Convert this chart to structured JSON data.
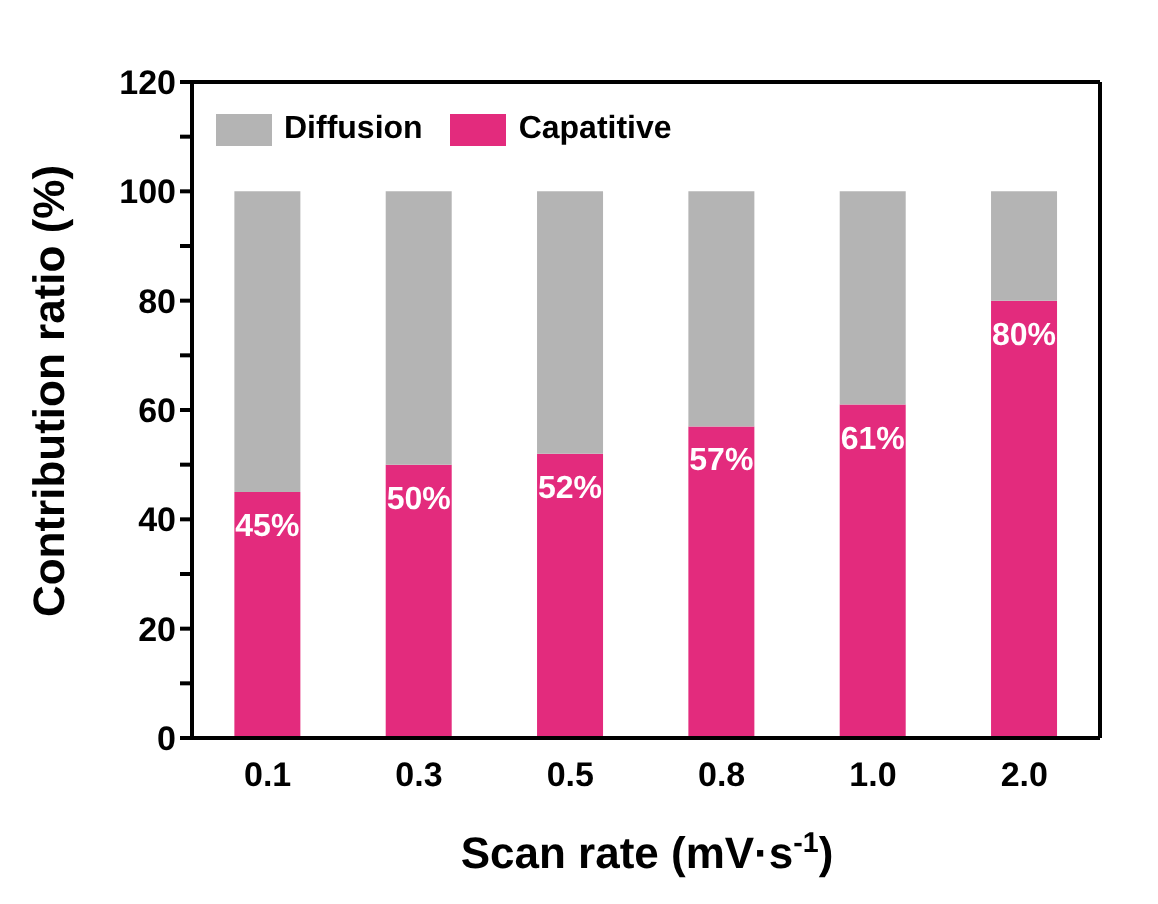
{
  "chart_data": {
    "type": "bar",
    "stacked": true,
    "xlabel": "Scan rate (mV·s$^{-1}$)",
    "ylabel": "Contribution ratio (%)",
    "categories": [
      "0.1",
      "0.3",
      "0.5",
      "0.8",
      "1.0",
      "2.0"
    ],
    "series": [
      {
        "name": "Capatitive",
        "color": "#e32b7d",
        "values": [
          45,
          50,
          52,
          57,
          61,
          80
        ],
        "value_labels": [
          "45%",
          "50%",
          "52%",
          "57%",
          "61%",
          "80%"
        ]
      },
      {
        "name": "Diffusion",
        "color": "#b4b4b4",
        "values": [
          55,
          50,
          48,
          43,
          39,
          20
        ]
      }
    ],
    "ylim": [
      0,
      120
    ],
    "yticks": [
      0,
      {
        "value": 10,
        "label": null
      },
      20,
      {
        "value": 30,
        "label": null
      },
      40,
      {
        "value": 50,
        "label": null
      },
      60,
      {
        "value": 70,
        "label": null
      },
      80,
      {
        "value": 90,
        "label": null
      },
      100,
      {
        "value": 110,
        "label": null
      },
      120
    ],
    "legend": "top left",
    "grid": false
  }
}
